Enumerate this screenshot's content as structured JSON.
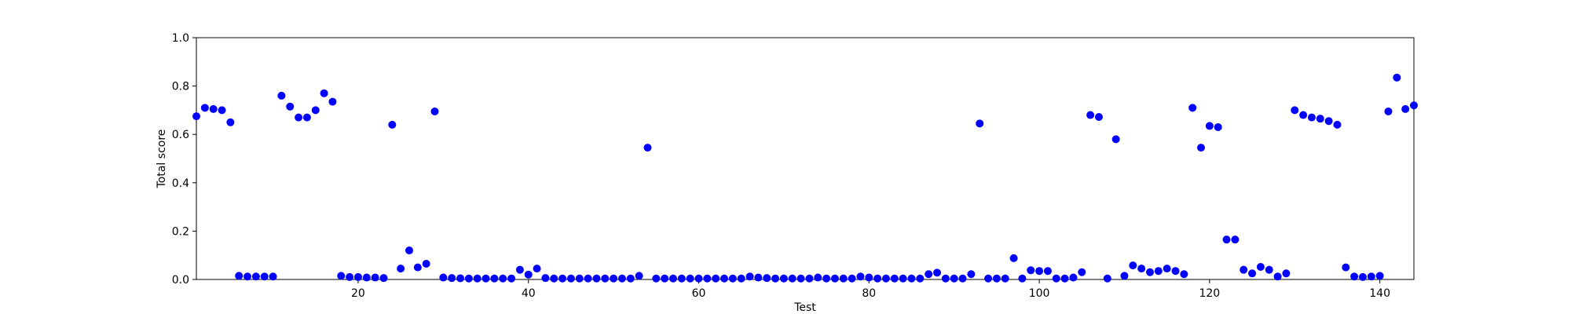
{
  "chart_data": {
    "type": "scatter",
    "xlabel": "Test",
    "ylabel": "Total score",
    "xlim": [
      1,
      144
    ],
    "ylim": [
      0,
      1.0
    ],
    "xticks": [
      "20",
      "40",
      "60",
      "80",
      "100",
      "120",
      "140"
    ],
    "yticks": [
      "0.0",
      "0.2",
      "0.4",
      "0.6",
      "0.8",
      "1.0"
    ],
    "grid": false,
    "marker_color": "#0000ff",
    "series": [
      {
        "x": [
          1,
          2,
          3,
          4,
          5,
          6,
          7,
          8,
          9,
          10,
          11,
          12,
          13,
          14,
          15,
          16,
          17,
          18,
          19,
          20,
          21,
          22,
          23,
          24,
          25,
          26,
          27,
          28,
          29,
          30,
          31,
          32,
          33,
          34,
          35,
          36,
          37,
          38,
          39,
          40,
          41,
          42,
          43,
          44,
          45,
          46,
          47,
          48,
          49,
          50,
          51,
          52,
          53,
          54,
          55,
          56,
          57,
          58,
          59,
          60,
          61,
          62,
          63,
          64,
          65,
          66,
          67,
          68,
          69,
          70,
          71,
          72,
          73,
          74,
          75,
          76,
          77,
          78,
          79,
          80,
          81,
          82,
          83,
          84,
          85,
          86,
          87,
          88,
          89,
          90,
          91,
          92,
          93,
          94,
          95,
          96,
          97,
          98,
          99,
          100,
          101,
          102,
          103,
          104,
          105,
          106,
          107,
          108,
          109,
          110,
          111,
          112,
          113,
          114,
          115,
          116,
          117,
          118,
          119,
          120,
          121,
          122,
          123,
          124,
          125,
          126,
          127,
          128,
          129,
          130,
          131,
          132,
          133,
          134,
          135,
          136,
          137,
          138,
          139,
          140,
          141,
          142,
          143,
          144
        ],
        "y": [
          0.675,
          0.71,
          0.705,
          0.7,
          0.65,
          0.015,
          0.012,
          0.012,
          0.012,
          0.012,
          0.76,
          0.715,
          0.67,
          0.67,
          0.7,
          0.77,
          0.735,
          0.015,
          0.01,
          0.01,
          0.008,
          0.008,
          0.006,
          0.64,
          0.045,
          0.12,
          0.05,
          0.065,
          0.695,
          0.008,
          0.006,
          0.005,
          0.004,
          0.004,
          0.004,
          0.004,
          0.004,
          0.004,
          0.04,
          0.02,
          0.045,
          0.006,
          0.004,
          0.004,
          0.004,
          0.004,
          0.004,
          0.004,
          0.004,
          0.004,
          0.004,
          0.004,
          0.015,
          0.545,
          0.004,
          0.004,
          0.004,
          0.004,
          0.004,
          0.004,
          0.004,
          0.004,
          0.004,
          0.004,
          0.004,
          0.012,
          0.008,
          0.006,
          0.004,
          0.004,
          0.004,
          0.004,
          0.004,
          0.008,
          0.004,
          0.004,
          0.004,
          0.004,
          0.012,
          0.008,
          0.004,
          0.004,
          0.004,
          0.004,
          0.004,
          0.004,
          0.022,
          0.028,
          0.004,
          0.004,
          0.004,
          0.022,
          0.645,
          0.004,
          0.004,
          0.004,
          0.088,
          0.004,
          0.038,
          0.035,
          0.035,
          0.004,
          0.004,
          0.008,
          0.03,
          0.68,
          0.672,
          0.004,
          0.58,
          0.015,
          0.058,
          0.045,
          0.03,
          0.035,
          0.045,
          0.035,
          0.022,
          0.71,
          0.545,
          0.635,
          0.63,
          0.165,
          0.165,
          0.04,
          0.025,
          0.052,
          0.04,
          0.012,
          0.025,
          0.7,
          0.68,
          0.67,
          0.665,
          0.655,
          0.64,
          0.05,
          0.012,
          0.01,
          0.012,
          0.015,
          0.695,
          0.835,
          0.705,
          0.72
        ]
      }
    ]
  }
}
